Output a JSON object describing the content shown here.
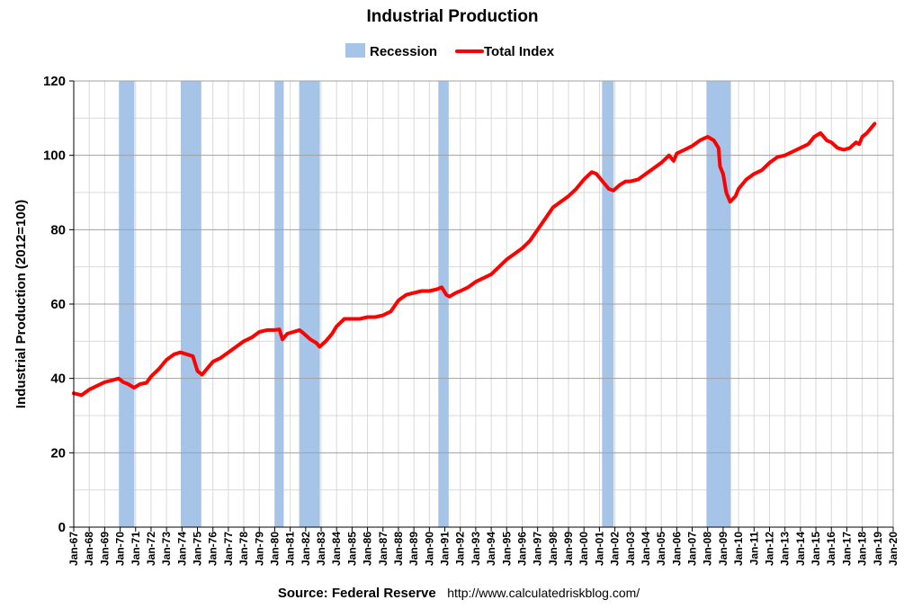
{
  "chart_data": {
    "type": "line",
    "title": "Industrial Production",
    "ylabel": "Industrial Production (2012=100)",
    "xlabel": "",
    "ylim": [
      0,
      120
    ],
    "yticks": [
      "0",
      "20",
      "40",
      "60",
      "80",
      "100",
      "120"
    ],
    "xlim": [
      1967.0,
      2020.0
    ],
    "xticks": [
      "Jan-67",
      "Jan-68",
      "Jan-69",
      "Jan-70",
      "Jan-71",
      "Jan-72",
      "Jan-73",
      "Jan-74",
      "Jan-75",
      "Jan-76",
      "Jan-77",
      "Jan-78",
      "Jan-79",
      "Jan-80",
      "Jan-81",
      "Jan-82",
      "Jan-83",
      "Jan-84",
      "Jan-85",
      "Jan-86",
      "Jan-87",
      "Jan-88",
      "Jan-89",
      "Jan-90",
      "Jan-91",
      "Jan-92",
      "Jan-93",
      "Jan-94",
      "Jan-95",
      "Jan-96",
      "Jan-97",
      "Jan-98",
      "Jan-99",
      "Jan-00",
      "Jan-01",
      "Jan-02",
      "Jan-03",
      "Jan-04",
      "Jan-05",
      "Jan-06",
      "Jan-07",
      "Jan-08",
      "Jan-09",
      "Jan-10",
      "Jan-11",
      "Jan-12",
      "Jan-13",
      "Jan-14",
      "Jan-15",
      "Jan-16",
      "Jan-17",
      "Jan-18",
      "Jan-19",
      "Jan-20"
    ],
    "grid": true,
    "legend": {
      "position": "top-center",
      "entries": [
        "Recession",
        "Total Index"
      ]
    },
    "colors": {
      "line": "#ff0000",
      "recession": "#a6c4e8",
      "grid_major": "#a0a0a0",
      "grid_minor": "#d9d9d9"
    },
    "recessions": [
      {
        "start": 1969.92,
        "end": 1970.92
      },
      {
        "start": 1973.92,
        "end": 1975.25
      },
      {
        "start": 1980.0,
        "end": 1980.58
      },
      {
        "start": 1981.58,
        "end": 1982.92
      },
      {
        "start": 1990.58,
        "end": 1991.25
      },
      {
        "start": 2001.17,
        "end": 2001.92
      },
      {
        "start": 2007.92,
        "end": 2009.5
      }
    ],
    "series": [
      {
        "name": "Total Index",
        "x": [
          1967.0,
          1967.5,
          1968.0,
          1968.5,
          1969.0,
          1969.5,
          1969.9,
          1970.2,
          1970.5,
          1970.9,
          1971.3,
          1971.7,
          1972.0,
          1972.5,
          1973.0,
          1973.5,
          1973.9,
          1974.3,
          1974.7,
          1975.0,
          1975.3,
          1975.7,
          1976.0,
          1976.5,
          1977.0,
          1977.5,
          1978.0,
          1978.5,
          1979.0,
          1979.5,
          1980.0,
          1980.3,
          1980.5,
          1980.8,
          1981.2,
          1981.6,
          1981.9,
          1982.3,
          1982.7,
          1982.9,
          1983.3,
          1983.7,
          1984.0,
          1984.5,
          1985.0,
          1985.5,
          1986.0,
          1986.5,
          1987.0,
          1987.5,
          1988.0,
          1988.5,
          1989.0,
          1989.5,
          1990.0,
          1990.5,
          1990.8,
          1991.1,
          1991.3,
          1991.7,
          1992.0,
          1992.5,
          1993.0,
          1993.5,
          1994.0,
          1994.5,
          1995.0,
          1995.5,
          1996.0,
          1996.5,
          1997.0,
          1997.5,
          1998.0,
          1998.5,
          1999.0,
          1999.5,
          2000.0,
          2000.5,
          2000.8,
          2001.2,
          2001.6,
          2001.9,
          2002.3,
          2002.7,
          2003.0,
          2003.5,
          2004.0,
          2004.5,
          2005.0,
          2005.5,
          2005.8,
          2006.0,
          2006.5,
          2007.0,
          2007.5,
          2008.0,
          2008.4,
          2008.7,
          2008.8,
          2009.0,
          2009.2,
          2009.45,
          2009.8,
          2010.0,
          2010.5,
          2011.0,
          2011.5,
          2012.0,
          2012.5,
          2013.0,
          2013.5,
          2014.0,
          2014.5,
          2014.9,
          2015.3,
          2015.7,
          2016.0,
          2016.4,
          2016.8,
          2017.2,
          2017.6,
          2017.8,
          2018.0,
          2018.3,
          2018.6,
          2018.8
        ],
        "values": [
          36,
          35.5,
          37,
          38,
          39,
          39.5,
          40,
          39,
          38.5,
          37.5,
          38.5,
          38.8,
          40.5,
          42.5,
          45,
          46.5,
          47,
          46.5,
          46,
          42,
          41,
          43,
          44.5,
          45.5,
          47,
          48.5,
          50,
          51,
          52.5,
          53,
          53,
          53.2,
          50.5,
          52,
          52.5,
          53,
          52,
          50.5,
          49.5,
          48.5,
          50,
          52,
          54,
          56,
          56,
          56,
          56.5,
          56.5,
          57,
          58,
          61,
          62.5,
          63,
          63.5,
          63.5,
          64,
          64.5,
          62.5,
          62,
          63,
          63.5,
          64.5,
          66,
          67,
          68,
          70,
          72,
          73.5,
          75,
          77,
          80,
          83,
          86,
          87.5,
          89,
          91,
          93.5,
          95.5,
          95,
          93,
          91,
          90.5,
          92,
          93,
          93,
          93.5,
          95,
          96.5,
          98,
          100,
          98.5,
          100.5,
          101.5,
          102.5,
          104,
          105,
          104,
          102,
          97,
          95,
          90,
          87.5,
          89,
          91,
          93.5,
          95,
          96,
          98,
          99.5,
          100,
          101,
          102,
          103,
          105,
          106,
          104,
          103.5,
          102,
          101.5,
          102,
          103.5,
          103,
          105,
          106,
          107.5,
          108.5
        ]
      }
    ]
  },
  "source": {
    "label": "Source: Federal Reserve",
    "url": "http://www.calculatedriskblog.com/"
  }
}
